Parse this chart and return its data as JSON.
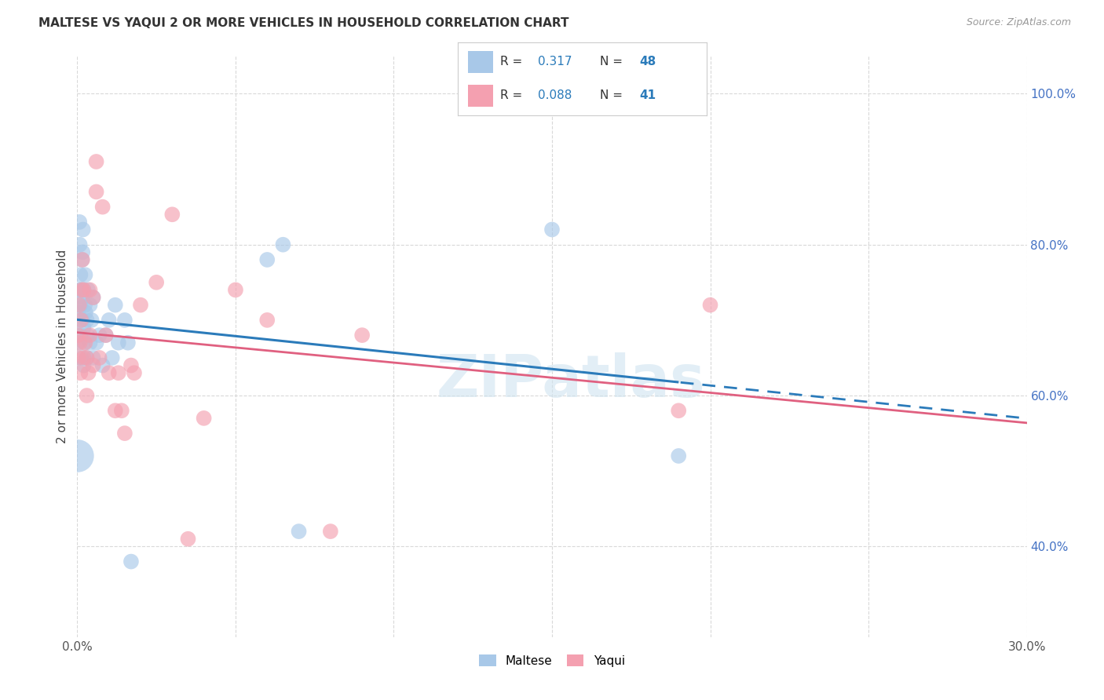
{
  "title": "MALTESE VS YAQUI 2 OR MORE VEHICLES IN HOUSEHOLD CORRELATION CHART",
  "source": "Source: ZipAtlas.com",
  "ylabel": "2 or more Vehicles in Household",
  "xmin": 0.0,
  "xmax": 0.3,
  "ymin": 0.28,
  "ymax": 1.05,
  "xtick_positions": [
    0.0,
    0.05,
    0.1,
    0.15,
    0.2,
    0.25,
    0.3
  ],
  "xticklabels": [
    "0.0%",
    "",
    "",
    "",
    "",
    "",
    "30.0%"
  ],
  "ytick_positions": [
    0.4,
    0.6,
    0.8,
    1.0
  ],
  "yticklabels": [
    "40.0%",
    "60.0%",
    "80.0%",
    "100.0%"
  ],
  "r_maltese": 0.317,
  "n_maltese": 48,
  "r_yaqui": 0.088,
  "n_yaqui": 41,
  "color_maltese_scatter": "#a8c8e8",
  "color_yaqui_scatter": "#f4a0b0",
  "color_line_maltese": "#2b7bba",
  "color_line_yaqui": "#e06080",
  "watermark": "ZIPatlas",
  "maltese_x": [
    0.0002,
    0.0003,
    0.0005,
    0.0007,
    0.0008,
    0.001,
    0.001,
    0.001,
    0.0012,
    0.0013,
    0.0015,
    0.0015,
    0.0016,
    0.0017,
    0.0018,
    0.002,
    0.002,
    0.002,
    0.0022,
    0.0024,
    0.0025,
    0.0026,
    0.003,
    0.003,
    0.0032,
    0.0034,
    0.004,
    0.004,
    0.0045,
    0.005,
    0.005,
    0.006,
    0.007,
    0.008,
    0.009,
    0.01,
    0.011,
    0.012,
    0.013,
    0.015,
    0.016,
    0.017,
    0.06,
    0.065,
    0.07,
    0.15,
    0.19,
    0.0001
  ],
  "maltese_y": [
    0.67,
    0.71,
    0.74,
    0.83,
    0.8,
    0.68,
    0.72,
    0.76,
    0.65,
    0.74,
    0.7,
    0.78,
    0.73,
    0.79,
    0.82,
    0.64,
    0.69,
    0.74,
    0.67,
    0.72,
    0.76,
    0.71,
    0.65,
    0.7,
    0.68,
    0.74,
    0.67,
    0.72,
    0.7,
    0.73,
    0.65,
    0.67,
    0.68,
    0.64,
    0.68,
    0.7,
    0.65,
    0.72,
    0.67,
    0.7,
    0.67,
    0.38,
    0.78,
    0.8,
    0.42,
    0.82,
    0.52,
    0.52
  ],
  "maltese_size_large": [
    0,
    0,
    0,
    0,
    0,
    0,
    0,
    0,
    0,
    0,
    0,
    0,
    0,
    0,
    0,
    0,
    0,
    0,
    0,
    0,
    0,
    0,
    0,
    0,
    0,
    0,
    0,
    0,
    0,
    0,
    0,
    0,
    0,
    0,
    0,
    0,
    0,
    0,
    0,
    0,
    0,
    0,
    0,
    0,
    0,
    0,
    0,
    1
  ],
  "yaqui_x": [
    0.0002,
    0.0004,
    0.0006,
    0.0008,
    0.001,
    0.0012,
    0.0014,
    0.0016,
    0.002,
    0.002,
    0.0025,
    0.003,
    0.003,
    0.0035,
    0.004,
    0.004,
    0.005,
    0.005,
    0.006,
    0.006,
    0.007,
    0.008,
    0.009,
    0.01,
    0.012,
    0.013,
    0.014,
    0.015,
    0.017,
    0.018,
    0.02,
    0.025,
    0.03,
    0.035,
    0.04,
    0.05,
    0.06,
    0.08,
    0.09,
    0.19,
    0.2
  ],
  "yaqui_y": [
    0.68,
    0.65,
    0.72,
    0.67,
    0.63,
    0.7,
    0.74,
    0.78,
    0.65,
    0.74,
    0.67,
    0.6,
    0.65,
    0.63,
    0.68,
    0.74,
    0.64,
    0.73,
    0.87,
    0.91,
    0.65,
    0.85,
    0.68,
    0.63,
    0.58,
    0.63,
    0.58,
    0.55,
    0.64,
    0.63,
    0.72,
    0.75,
    0.84,
    0.41,
    0.57,
    0.74,
    0.7,
    0.42,
    0.68,
    0.58,
    0.72
  ]
}
